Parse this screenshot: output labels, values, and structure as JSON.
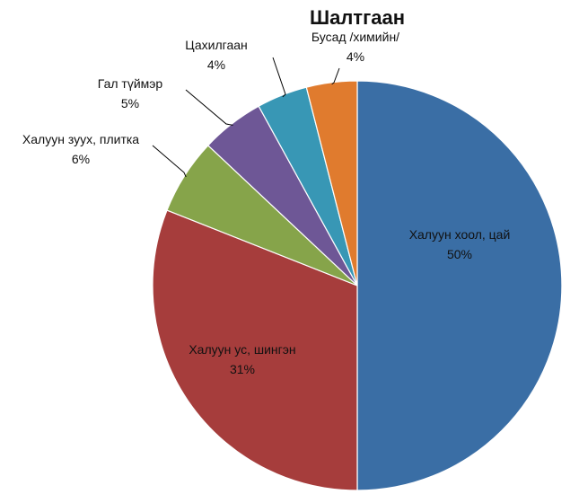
{
  "chart_data": {
    "type": "pie",
    "title": "Шалтгаан",
    "start_angle_deg": 0,
    "direction": "clockwise",
    "slices": [
      {
        "name": "Халуун хоол, цай",
        "value": 50,
        "label": "50%",
        "color": "#3A6EA5"
      },
      {
        "name": "Халуун ус, шингэн",
        "value": 31,
        "label": "31%",
        "color": "#A63D3C"
      },
      {
        "name": "Халуун зуух, плитка",
        "value": 6,
        "label": "6%",
        "color": "#86A44A"
      },
      {
        "name": "Гал түймэр",
        "value": 5,
        "label": "5%",
        "color": "#6E5796"
      },
      {
        "name": "Цахилгаан",
        "value": 4,
        "label": "4%",
        "color": "#3897B5"
      },
      {
        "name": "Бусад /химийн/",
        "value": 4,
        "label": "4%",
        "color": "#E07B2E"
      }
    ]
  }
}
